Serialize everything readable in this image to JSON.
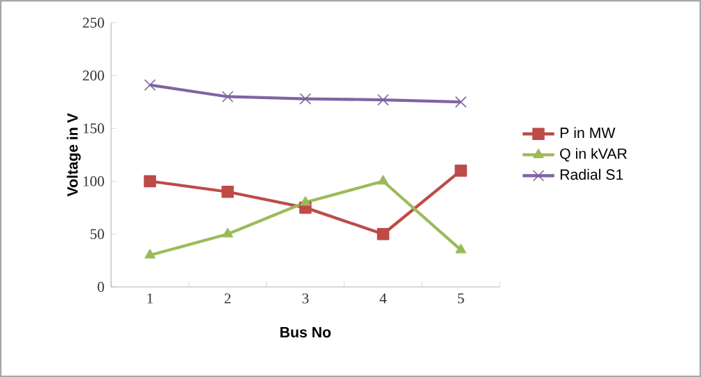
{
  "chart_data": {
    "type": "line",
    "xlabel": "Bus No",
    "ylabel": "Voltage in V",
    "categories": [
      "1",
      "2",
      "3",
      "4",
      "5"
    ],
    "series": [
      {
        "name": "P in MW",
        "color": "#be4b48",
        "marker": "square",
        "values": [
          100,
          90,
          75,
          50,
          110
        ]
      },
      {
        "name": "Q in kVAR",
        "color": "#9bbb59",
        "marker": "triangle",
        "values": [
          30,
          50,
          80,
          100,
          35
        ]
      },
      {
        "name": "Radial S1",
        "color": "#8064a2",
        "marker": "cross",
        "values": [
          191,
          180,
          178,
          177,
          175
        ]
      }
    ],
    "ylim": [
      0,
      250
    ],
    "yticks": [
      0,
      50,
      100,
      150,
      200,
      250
    ],
    "grid": false,
    "legend": "right",
    "line_style": "solid"
  }
}
